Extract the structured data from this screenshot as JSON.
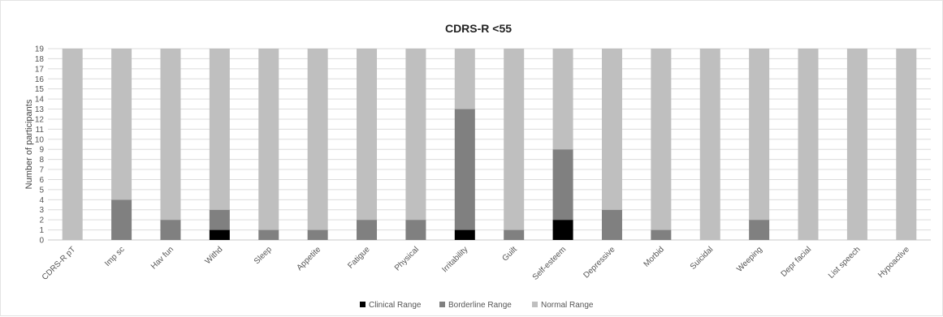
{
  "chart_data": {
    "type": "bar",
    "stacked": true,
    "title": "CDRS-R <55",
    "xlabel": "",
    "ylabel": "Number of participants",
    "ylim": [
      0,
      19
    ],
    "yticks": [
      0,
      1,
      2,
      3,
      4,
      5,
      6,
      7,
      8,
      9,
      10,
      11,
      12,
      13,
      14,
      15,
      16,
      17,
      18,
      19
    ],
    "grid": true,
    "legend_position": "bottom",
    "categories": [
      "CDRS-R pT",
      "Imp sc",
      "Hav fun",
      "Withd",
      "Sleep",
      "Appetite",
      "Fatigue",
      "Physical",
      "Irritability",
      "Guilt",
      "Self-esteem",
      "Depressive",
      "Morbid",
      "Suicidal",
      "Weeping",
      "Depr facial",
      "List speech",
      "Hypoactive"
    ],
    "series": [
      {
        "name": "Clinical Range",
        "color": "#000000",
        "values": [
          0,
          0,
          0,
          1,
          0,
          0,
          0,
          0,
          1,
          0,
          2,
          0,
          0,
          0,
          0,
          0,
          0,
          0
        ]
      },
      {
        "name": "Borderline Range",
        "color": "#808080",
        "values": [
          0,
          4,
          2,
          2,
          1,
          1,
          2,
          2,
          12,
          1,
          7,
          3,
          1,
          0,
          2,
          0,
          0,
          0
        ]
      },
      {
        "name": "Normal Range",
        "color": "#bfbfbf",
        "values": [
          19,
          15,
          17,
          16,
          18,
          18,
          17,
          17,
          6,
          18,
          10,
          16,
          18,
          19,
          17,
          19,
          19,
          19
        ]
      }
    ]
  }
}
